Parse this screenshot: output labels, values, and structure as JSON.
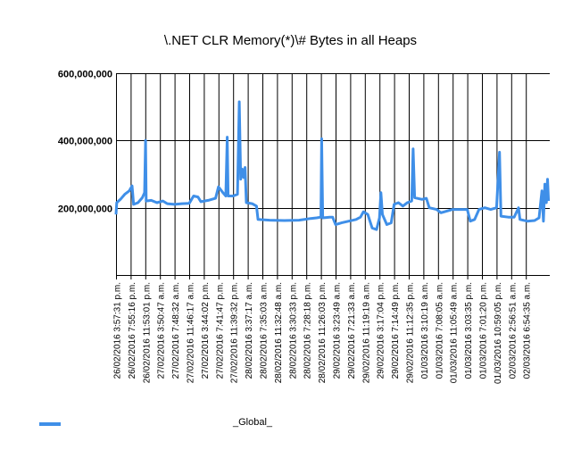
{
  "chart_data": {
    "type": "line",
    "title": "\\.NET CLR Memory(*)\\# Bytes in all Heaps",
    "xlabel": "",
    "ylabel": "",
    "ylim": [
      0,
      600000000
    ],
    "y_ticks": [
      {
        "value": 200000000,
        "label": "200,000,000"
      },
      {
        "value": 400000000,
        "label": "400,000,000"
      },
      {
        "value": 600000000,
        "label": "600,000,000"
      }
    ],
    "grid": true,
    "legend_position": "bottom-left",
    "series_color": "#3f8fe8",
    "categories": [
      "26/02/2016 3:57:31 p.m.",
      "26/02/2016 7:55:16 p.m.",
      "26/02/2016 11:53:01 p.m.",
      "27/02/2016 3:50:47 a.m.",
      "27/02/2016 7:48:32 a.m.",
      "27/02/2016 11:46:17 a.m.",
      "27/02/2016 3:44:02 p.m.",
      "27/02/2016 7:41:47 p.m.",
      "27/02/2016 11:39:32 p.m.",
      "28/02/2016 3:37:17 a.m.",
      "28/02/2016 7:35:03 a.m.",
      "28/02/2016 11:32:48 a.m.",
      "28/02/2016 3:30:33 p.m.",
      "28/02/2016 7:28:18 p.m.",
      "28/02/2016 11:26:03 p.m.",
      "29/02/2016 3:23:49 a.m.",
      "29/02/2016 7:21:33 a.m.",
      "29/02/2016 11:19:19 a.m.",
      "29/02/2016 3:17:04 p.m.",
      "29/02/2016 7:14:49 p.m.",
      "29/02/2016 11:12:35 p.m.",
      "01/03/2016 3:10:19 a.m.",
      "01/03/2016 7:08:05 a.m.",
      "01/03/2016 11:05:49 a.m.",
      "01/03/2016 3:03:35 p.m.",
      "01/03/2016 7:01:20 p.m.",
      "01/03/2016 10:59:05 p.m.",
      "02/03/2016 2:56:51 a.m.",
      "02/03/2016 6:54:35 a.m."
    ],
    "series": [
      {
        "name": "_Global_",
        "values": [
          [
            0,
            180000000
          ],
          [
            0.05,
            215000000
          ],
          [
            0.3,
            225000000
          ],
          [
            0.6,
            240000000
          ],
          [
            0.9,
            250000000
          ],
          [
            1.1,
            265000000
          ],
          [
            1.2,
            210000000
          ],
          [
            1.5,
            215000000
          ],
          [
            1.8,
            230000000
          ],
          [
            1.95,
            245000000
          ],
          [
            2.02,
            400000000
          ],
          [
            2.06,
            220000000
          ],
          [
            2.4,
            222000000
          ],
          [
            2.8,
            215000000
          ],
          [
            3.2,
            220000000
          ],
          [
            3.5,
            212000000
          ],
          [
            4.0,
            210000000
          ],
          [
            4.5,
            212000000
          ],
          [
            5.0,
            213000000
          ],
          [
            5.3,
            235000000
          ],
          [
            5.6,
            232000000
          ],
          [
            5.8,
            218000000
          ],
          [
            6.3,
            222000000
          ],
          [
            6.8,
            228000000
          ],
          [
            7.0,
            262000000
          ],
          [
            7.3,
            245000000
          ],
          [
            7.5,
            235000000
          ],
          [
            7.6,
            410000000
          ],
          [
            7.66,
            235000000
          ],
          [
            8.0,
            235000000
          ],
          [
            8.3,
            240000000
          ],
          [
            8.42,
            515000000
          ],
          [
            8.52,
            285000000
          ],
          [
            8.62,
            315000000
          ],
          [
            8.72,
            290000000
          ],
          [
            8.82,
            320000000
          ],
          [
            8.9,
            215000000
          ],
          [
            9.3,
            212000000
          ],
          [
            9.6,
            205000000
          ],
          [
            9.7,
            165000000
          ],
          [
            10.5,
            163000000
          ],
          [
            11.5,
            162000000
          ],
          [
            12.5,
            163000000
          ],
          [
            13.3,
            168000000
          ],
          [
            13.7,
            170000000
          ],
          [
            14.0,
            172000000
          ],
          [
            14.05,
            405000000
          ],
          [
            14.12,
            170000000
          ],
          [
            14.6,
            172000000
          ],
          [
            14.8,
            172000000
          ],
          [
            15.0,
            150000000
          ],
          [
            15.4,
            155000000
          ],
          [
            15.9,
            160000000
          ],
          [
            16.4,
            165000000
          ],
          [
            16.7,
            172000000
          ],
          [
            16.9,
            188000000
          ],
          [
            17.2,
            180000000
          ],
          [
            17.5,
            140000000
          ],
          [
            17.8,
            135000000
          ],
          [
            18.0,
            170000000
          ],
          [
            18.1,
            245000000
          ],
          [
            18.2,
            180000000
          ],
          [
            18.5,
            150000000
          ],
          [
            18.8,
            155000000
          ],
          [
            19.0,
            210000000
          ],
          [
            19.3,
            215000000
          ],
          [
            19.6,
            205000000
          ],
          [
            19.9,
            215000000
          ],
          [
            20.2,
            220000000
          ],
          [
            20.3,
            375000000
          ],
          [
            20.4,
            230000000
          ],
          [
            20.9,
            225000000
          ],
          [
            21.2,
            228000000
          ],
          [
            21.4,
            200000000
          ],
          [
            21.9,
            195000000
          ],
          [
            22.2,
            185000000
          ],
          [
            22.6,
            190000000
          ],
          [
            23.0,
            195000000
          ],
          [
            23.5,
            195000000
          ],
          [
            24.0,
            195000000
          ],
          [
            24.2,
            160000000
          ],
          [
            24.5,
            165000000
          ],
          [
            24.8,
            195000000
          ],
          [
            25.2,
            200000000
          ],
          [
            25.6,
            195000000
          ],
          [
            26.0,
            200000000
          ],
          [
            26.2,
            365000000
          ],
          [
            26.3,
            175000000
          ],
          [
            26.8,
            172000000
          ],
          [
            27.2,
            172000000
          ],
          [
            27.5,
            200000000
          ],
          [
            27.6,
            165000000
          ],
          [
            28.1,
            160000000
          ],
          [
            28.6,
            162000000
          ],
          [
            28.9,
            170000000
          ],
          [
            29.1,
            250000000
          ],
          [
            29.2,
            160000000
          ],
          [
            29.3,
            270000000
          ],
          [
            29.4,
            215000000
          ],
          [
            29.48,
            285000000
          ],
          [
            29.55,
            220000000
          ]
        ]
      }
    ]
  },
  "legend": {
    "label": "_Global_"
  }
}
